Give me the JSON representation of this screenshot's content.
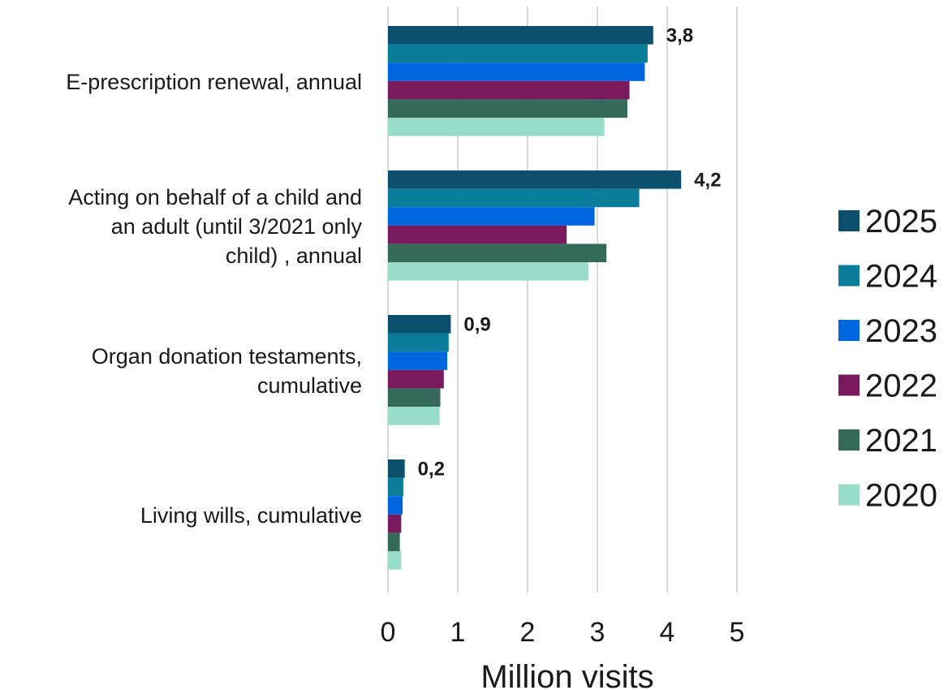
{
  "chart_data": {
    "type": "bar",
    "orientation": "horizontal",
    "categories": [
      "E-prescription renewal, annual",
      "Acting on behalf of a child and an adult (until 3/2021 only child) , annual",
      "Organ donation testaments, cumulative",
      "Living wills, cumulative"
    ],
    "category_lines": [
      [
        "E-prescription renewal, annual"
      ],
      [
        "Acting on behalf of a child and",
        "an adult (until 3/2021 only",
        "child) , annual"
      ],
      [
        "Organ donation testaments,",
        "cumulative"
      ],
      [
        "Living wills, cumulative"
      ]
    ],
    "series": [
      {
        "name": "2025",
        "color": "#0b4f6c",
        "values": [
          3.8,
          4.2,
          0.9,
          0.24
        ]
      },
      {
        "name": "2024",
        "color": "#0a7d9a",
        "values": [
          3.72,
          3.6,
          0.87,
          0.22
        ]
      },
      {
        "name": "2023",
        "color": "#0066e0",
        "values": [
          3.68,
          2.96,
          0.85,
          0.21
        ]
      },
      {
        "name": "2022",
        "color": "#7a1a5e",
        "values": [
          3.46,
          2.56,
          0.8,
          0.19
        ]
      },
      {
        "name": "2021",
        "color": "#356a5a",
        "values": [
          3.43,
          3.13,
          0.75,
          0.17
        ]
      },
      {
        "name": "2020",
        "color": "#97ddc9",
        "values": [
          3.1,
          2.87,
          0.74,
          0.19
        ]
      }
    ],
    "data_labels": [
      "3,8",
      "4,2",
      "0,9",
      "0,2"
    ],
    "xlim": [
      0,
      5
    ],
    "xticks": [
      "0",
      "1",
      "2",
      "3",
      "4",
      "5"
    ],
    "xlabel": "Million visits",
    "ylabel": "",
    "grid": "vertical",
    "legend_position": "right"
  }
}
